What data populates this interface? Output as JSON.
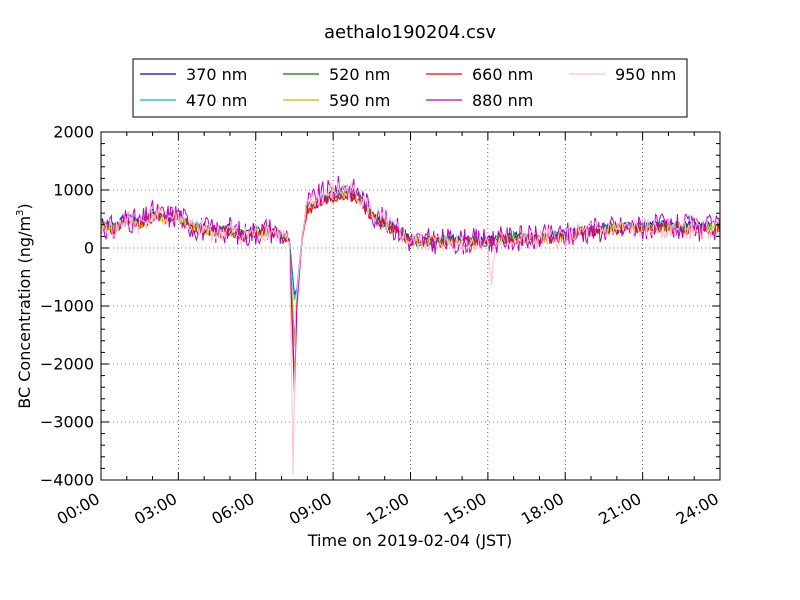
{
  "chart_data": {
    "type": "line",
    "title": "aethalo190204.csv",
    "xlabel": "Time on 2019-02-04 (JST)",
    "ylabel_main": "BC Concentration (ng/m",
    "ylabel_sup": "3",
    "ylabel_close": ")",
    "xlim": [
      0,
      24
    ],
    "ylim": [
      -4000,
      2000
    ],
    "grid": true,
    "legend_position": "top",
    "x_ticks": [
      0,
      3,
      6,
      9,
      12,
      15,
      18,
      21,
      24
    ],
    "x_tick_labels": [
      "00:00",
      "03:00",
      "06:00",
      "09:00",
      "12:00",
      "15:00",
      "18:00",
      "21:00",
      "24:00"
    ],
    "y_ticks": [
      -4000,
      -3000,
      -2000,
      -1000,
      0,
      1000,
      2000
    ],
    "y_tick_labels": [
      "−4000",
      "−3000",
      "−2000",
      "−1000",
      "0",
      "1000",
      "2000"
    ],
    "series": [
      {
        "name": "370 nm",
        "color": "#0000ff",
        "noise": 80,
        "seed": 3,
        "x": [
          0,
          0.5,
          1.0,
          1.5,
          2.0,
          2.5,
          3.0,
          3.5,
          4.0,
          4.5,
          5.0,
          5.5,
          6.0,
          6.5,
          7.0,
          7.3,
          7.5,
          7.6,
          7.8,
          8.0,
          8.5,
          9.0,
          9.5,
          10.0,
          10.5,
          11.0,
          11.5,
          12.0,
          13.0,
          14.0,
          15.0,
          16.0,
          17.0,
          18.0,
          19.0,
          20.0,
          21.0,
          22.0,
          23.0,
          24.0
        ],
        "y": [
          450,
          350,
          550,
          450,
          600,
          550,
          580,
          400,
          350,
          300,
          350,
          250,
          300,
          350,
          250,
          150,
          -800,
          -700,
          200,
          700,
          850,
          950,
          1000,
          900,
          600,
          450,
          350,
          150,
          150,
          150,
          150,
          200,
          200,
          250,
          350,
          380,
          400,
          400,
          380,
          380
        ]
      },
      {
        "name": "470 nm",
        "color": "#00bfbf",
        "noise": 85,
        "seed": 7,
        "x": [
          0,
          0.5,
          1.0,
          1.5,
          2.0,
          2.5,
          3.0,
          3.5,
          4.0,
          4.5,
          5.0,
          5.5,
          6.0,
          6.5,
          7.0,
          7.3,
          7.5,
          7.6,
          7.8,
          8.0,
          8.5,
          9.0,
          9.5,
          10.0,
          10.5,
          11.0,
          11.5,
          12.0,
          13.0,
          14.0,
          15.0,
          16.0,
          17.0,
          18.0,
          19.0,
          20.0,
          21.0,
          22.0,
          23.0,
          24.0
        ],
        "y": [
          420,
          340,
          520,
          430,
          580,
          530,
          560,
          380,
          330,
          280,
          330,
          230,
          280,
          330,
          230,
          130,
          -900,
          -700,
          180,
          680,
          830,
          920,
          980,
          880,
          580,
          430,
          330,
          130,
          130,
          130,
          130,
          180,
          180,
          230,
          330,
          360,
          380,
          380,
          360,
          360
        ]
      },
      {
        "name": "520 nm",
        "color": "#008000",
        "noise": 90,
        "seed": 11,
        "x": [
          0,
          0.5,
          1.0,
          1.5,
          2.0,
          2.5,
          3.0,
          3.5,
          4.0,
          4.5,
          5.0,
          5.5,
          6.0,
          6.5,
          7.0,
          7.3,
          7.5,
          7.6,
          7.8,
          8.0,
          8.5,
          9.0,
          9.5,
          10.0,
          10.5,
          11.0,
          11.5,
          12.0,
          13.0,
          14.0,
          15.0,
          16.0,
          17.0,
          18.0,
          19.0,
          20.0,
          21.0,
          22.0,
          23.0,
          24.0
        ],
        "y": [
          400,
          330,
          500,
          420,
          560,
          520,
          540,
          370,
          320,
          270,
          320,
          220,
          270,
          320,
          220,
          120,
          -1600,
          -800,
          170,
          660,
          810,
          900,
          960,
          860,
          560,
          420,
          320,
          120,
          120,
          120,
          120,
          170,
          170,
          220,
          320,
          340,
          360,
          360,
          340,
          340
        ]
      },
      {
        "name": "590 nm",
        "color": "#bfbf00",
        "noise": 95,
        "seed": 17,
        "x": [
          0,
          0.5,
          1.0,
          1.5,
          2.0,
          2.5,
          3.0,
          3.5,
          4.0,
          4.5,
          5.0,
          5.5,
          6.0,
          6.5,
          7.0,
          7.3,
          7.5,
          7.6,
          7.8,
          8.0,
          8.5,
          9.0,
          9.5,
          10.0,
          10.5,
          11.0,
          11.5,
          12.0,
          13.0,
          14.0,
          15.0,
          16.0,
          17.0,
          18.0,
          19.0,
          20.0,
          21.0,
          22.0,
          23.0,
          24.0
        ],
        "y": [
          390,
          320,
          490,
          410,
          550,
          510,
          530,
          360,
          310,
          260,
          310,
          210,
          260,
          310,
          210,
          110,
          -1700,
          -800,
          160,
          650,
          800,
          890,
          950,
          850,
          550,
          410,
          310,
          110,
          110,
          110,
          110,
          160,
          160,
          210,
          310,
          330,
          350,
          350,
          330,
          330
        ]
      },
      {
        "name": "660 nm",
        "color": "#ff0000",
        "noise": 100,
        "seed": 23,
        "x": [
          0,
          0.5,
          1.0,
          1.5,
          2.0,
          2.5,
          3.0,
          3.5,
          4.0,
          4.5,
          5.0,
          5.5,
          6.0,
          6.5,
          7.0,
          7.3,
          7.5,
          7.6,
          7.8,
          8.0,
          8.5,
          9.0,
          9.5,
          10.0,
          10.5,
          11.0,
          11.5,
          12.0,
          13.0,
          14.0,
          15.0,
          16.0,
          17.0,
          18.0,
          19.0,
          20.0,
          21.0,
          22.0,
          23.0,
          24.0
        ],
        "y": [
          380,
          310,
          480,
          400,
          540,
          500,
          520,
          350,
          300,
          250,
          300,
          200,
          250,
          300,
          200,
          100,
          -2200,
          -900,
          150,
          640,
          790,
          880,
          940,
          840,
          540,
          400,
          300,
          100,
          100,
          100,
          100,
          150,
          150,
          200,
          300,
          320,
          340,
          340,
          320,
          320
        ]
      },
      {
        "name": "880 nm",
        "color": "#bf00bf",
        "noise": 230,
        "seed": 31,
        "x": [
          0,
          0.5,
          1.0,
          1.5,
          2.0,
          2.5,
          3.0,
          3.5,
          4.0,
          4.5,
          5.0,
          5.5,
          6.0,
          6.5,
          7.0,
          7.3,
          7.5,
          7.6,
          7.8,
          8.0,
          8.5,
          9.0,
          9.5,
          10.0,
          10.5,
          11.0,
          11.5,
          12.0,
          13.0,
          14.0,
          15.0,
          16.0,
          17.0,
          18.0,
          19.0,
          20.0,
          21.0,
          22.0,
          23.0,
          24.0
        ],
        "y": [
          400,
          320,
          520,
          420,
          600,
          540,
          580,
          380,
          330,
          280,
          330,
          230,
          280,
          330,
          230,
          120,
          -2500,
          -1000,
          200,
          750,
          900,
          1000,
          1050,
          950,
          620,
          450,
          330,
          120,
          120,
          120,
          120,
          170,
          170,
          220,
          320,
          340,
          360,
          360,
          340,
          340
        ]
      },
      {
        "name": "950 nm",
        "color": "#ffc0cb",
        "noise": 180,
        "seed": 41,
        "x": [
          0,
          0.5,
          1.0,
          1.5,
          2.0,
          2.5,
          3.0,
          3.5,
          4.0,
          4.5,
          5.0,
          5.5,
          6.0,
          6.5,
          7.0,
          7.3,
          7.45,
          7.55,
          7.8,
          8.0,
          8.5,
          9.0,
          9.5,
          10.0,
          10.5,
          11.0,
          11.5,
          12.0,
          13.0,
          14.0,
          15.0,
          15.15,
          15.3,
          16.0,
          17.0,
          18.0,
          19.0,
          20.0,
          21.0,
          22.0,
          23.0,
          24.0
        ],
        "y": [
          380,
          300,
          500,
          400,
          580,
          520,
          560,
          360,
          310,
          260,
          310,
          210,
          260,
          310,
          210,
          100,
          -3900,
          -1000,
          180,
          720,
          880,
          980,
          1020,
          920,
          600,
          430,
          310,
          100,
          100,
          100,
          100,
          -600,
          100,
          150,
          150,
          200,
          300,
          320,
          340,
          340,
          320,
          320
        ]
      }
    ]
  }
}
